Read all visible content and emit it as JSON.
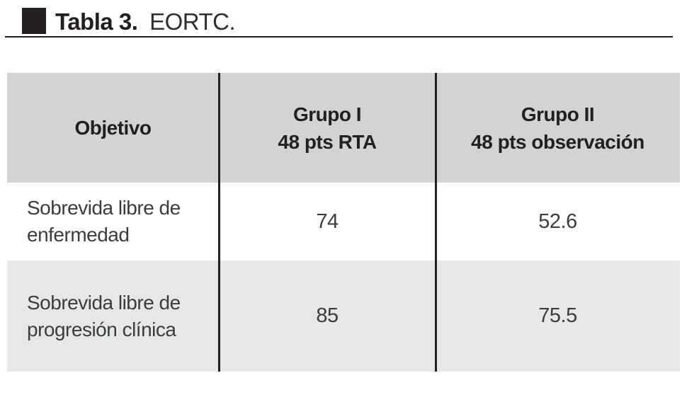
{
  "caption": {
    "label": "Tabla 3.",
    "title": "EORTC."
  },
  "table": {
    "header": {
      "col1": "Objetivo",
      "col2_line1": "Grupo I",
      "col2_line2": "48 pts RTA",
      "col3_line1": "Grupo II",
      "col3_line2": "48 pts observación"
    },
    "rows": [
      {
        "label_line1": "Sobrevida libre de",
        "label_line2": "enfermedad",
        "grupo1": "74",
        "grupo2": "52.6"
      },
      {
        "label_line1": "Sobrevida libre de",
        "label_line2": "progresión clínica",
        "grupo1": "85",
        "grupo2": "75.5"
      }
    ]
  },
  "chart_data": {
    "type": "table",
    "title": "Tabla 3. EORTC.",
    "columns": [
      "Objetivo",
      "Grupo I 48 pts RTA",
      "Grupo II 48 pts observación"
    ],
    "rows": [
      [
        "Sobrevida libre de enfermedad",
        74,
        52.6
      ],
      [
        "Sobrevida libre de progresión clínica",
        85,
        75.5
      ]
    ]
  },
  "colors": {
    "header_bg": "#d1d3d4",
    "alt_row_bg": "#e6e7e8",
    "rule_black": "#231f20",
    "body_text": "#3a3c3e",
    "header_text": "#231f20"
  }
}
